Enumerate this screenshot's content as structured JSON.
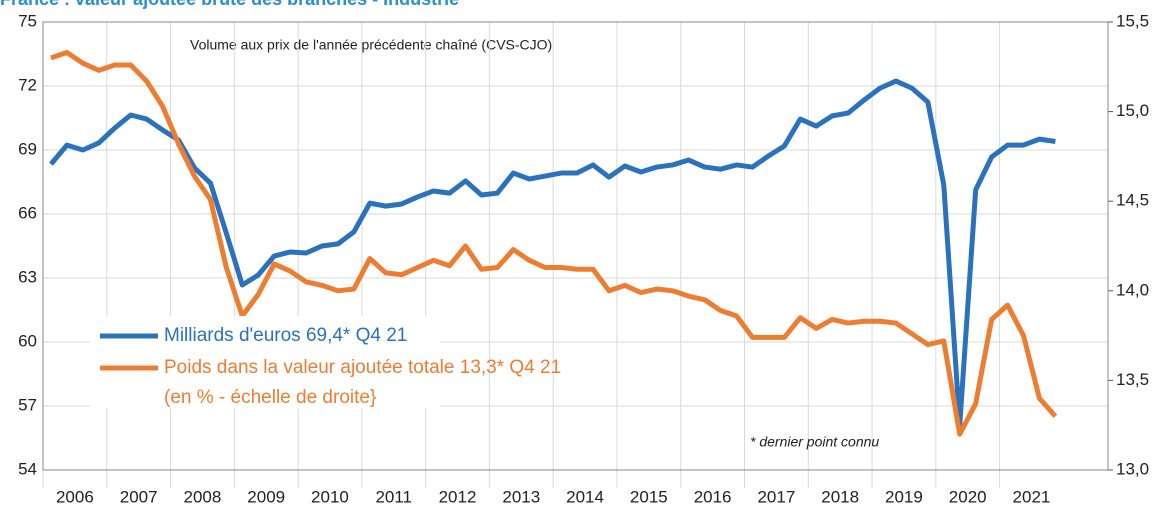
{
  "chart_data": {
    "type": "line",
    "title": "France : valeur ajoutée brute des branches - Industrie",
    "subtitle": "Volume aux prix de l'année précédente chaîné (CVS-CJO)",
    "annotation": "* dernier point connu",
    "legend_note": "(en % - échelle de droite}",
    "x": [
      2006.125,
      2006.375,
      2006.625,
      2006.875,
      2007.125,
      2007.375,
      2007.625,
      2007.875,
      2008.125,
      2008.375,
      2008.625,
      2008.875,
      2009.125,
      2009.375,
      2009.625,
      2009.875,
      2010.125,
      2010.375,
      2010.625,
      2010.875,
      2011.125,
      2011.375,
      2011.625,
      2011.875,
      2012.125,
      2012.375,
      2012.625,
      2012.875,
      2013.125,
      2013.375,
      2013.625,
      2013.875,
      2014.125,
      2014.375,
      2014.625,
      2014.875,
      2015.125,
      2015.375,
      2015.625,
      2015.875,
      2016.125,
      2016.375,
      2016.625,
      2016.875,
      2017.125,
      2017.375,
      2017.625,
      2017.875,
      2018.125,
      2018.375,
      2018.625,
      2018.875,
      2019.125,
      2019.375,
      2019.625,
      2019.875,
      2020.125,
      2020.375,
      2020.625,
      2020.875,
      2021.125,
      2021.375,
      2021.625,
      2021.875
    ],
    "xlim": [
      2006,
      2022.7
    ],
    "xticks": [
      2006,
      2007,
      2008,
      2009,
      2010,
      2011,
      2012,
      2013,
      2014,
      2015,
      2016,
      2017,
      2018,
      2019,
      2020,
      2021
    ],
    "ylim": [
      54,
      75
    ],
    "yticks": [
      54,
      57,
      60,
      63,
      66,
      69,
      72,
      75
    ],
    "y2lim": [
      13.0,
      15.5
    ],
    "y2ticks": [
      {
        "value": 13.0,
        "label": "13,0"
      },
      {
        "value": 13.5,
        "label": "13,5"
      },
      {
        "value": 14.0,
        "label": "14,0"
      },
      {
        "value": 14.5,
        "label": "14,5"
      },
      {
        "value": 15.0,
        "label": "15,0"
      },
      {
        "value": 15.5,
        "label": "15,5"
      }
    ],
    "grid": true,
    "series": [
      {
        "name": "Milliards d'euros 69,4* Q4 21",
        "color": "#2a72bd",
        "values": [
          68.34,
          69.23,
          69.0,
          69.33,
          70.03,
          70.64,
          70.45,
          69.94,
          69.47,
          68.16,
          67.45,
          65.1,
          62.67,
          63.14,
          64.03,
          64.22,
          64.17,
          64.5,
          64.6,
          65.16,
          66.51,
          66.37,
          66.47,
          66.8,
          67.08,
          66.98,
          67.55,
          66.89,
          66.98,
          67.92,
          67.64,
          67.78,
          67.92,
          67.92,
          68.3,
          67.73,
          68.25,
          67.97,
          68.2,
          68.3,
          68.53,
          68.2,
          68.1,
          68.3,
          68.2,
          68.72,
          69.19,
          70.45,
          70.12,
          70.6,
          70.73,
          71.34,
          71.9,
          72.23,
          71.9,
          71.25,
          67.36,
          56.1,
          67.13,
          68.67,
          69.23,
          69.23,
          69.51,
          69.4
        ]
      },
      {
        "name": "Poids dans la valeur ajoutée totale 13,3* Q4 21",
        "color": "#ed7d31",
        "axis": "y2",
        "values": [
          15.3,
          15.33,
          15.27,
          15.23,
          15.26,
          15.26,
          15.17,
          15.03,
          14.82,
          14.64,
          14.51,
          14.13,
          13.86,
          13.98,
          14.15,
          14.11,
          14.05,
          14.03,
          14.0,
          14.01,
          14.18,
          14.1,
          14.09,
          14.13,
          14.17,
          14.14,
          14.25,
          14.12,
          14.13,
          14.23,
          14.17,
          14.13,
          14.13,
          14.12,
          14.12,
          14.0,
          14.03,
          13.99,
          14.01,
          14.0,
          13.97,
          13.95,
          13.89,
          13.86,
          13.74,
          13.74,
          13.74,
          13.85,
          13.79,
          13.84,
          13.82,
          13.83,
          13.83,
          13.82,
          13.76,
          13.7,
          13.72,
          13.2,
          13.37,
          13.84,
          13.92,
          13.75,
          13.4,
          13.3
        ]
      }
    ]
  }
}
